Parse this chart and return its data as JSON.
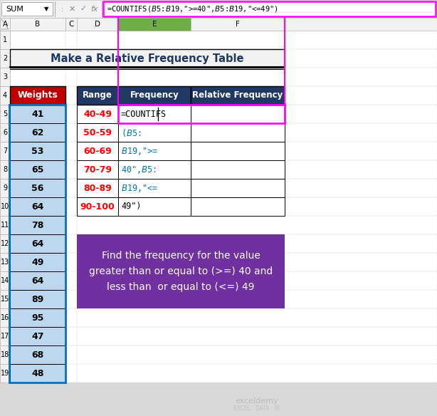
{
  "title": "Make a Relative Frequency Table",
  "weights_header": "Weights",
  "weights_data": [
    41,
    62,
    53,
    65,
    56,
    64,
    78,
    64,
    49,
    64,
    89,
    95,
    47,
    68,
    48
  ],
  "table_header": [
    "Range",
    "Frequency",
    "Relative Frequency"
  ],
  "ranges": [
    "40-49",
    "50-59",
    "60-69",
    "70-79",
    "80-89",
    "90-100"
  ],
  "formula_parts": [
    "=COUNTIFS",
    "($B$5:",
    "$B$19,\">= ",
    "40\",$B$5:",
    "$B$19,\"<= ",
    "49\")"
  ],
  "formula_parts_colors": [
    "#000000",
    "#0070C0",
    "#0070C0",
    "#0070C0",
    "#0070C0",
    "#000000"
  ],
  "formula_bar_text": "=COUNTIFS($B$5:$B$19,\">= 40\",$B$5:$B$19,\"<= 49\")",
  "annotation_text": "Find the frequency for the value\ngreater than or equal to (>=) 40 and\nless than  or equal to (<=) 49",
  "col_header_bg": "#1F3864",
  "col_header_fg": "#FFFFFF",
  "weights_header_bg": "#C00000",
  "weights_header_fg": "#FFFFFF",
  "weights_cell_bg": "#BDD7EE",
  "annotation_bg": "#7030A0",
  "annotation_fg": "#FFFFFF",
  "range_color": "#FF0000",
  "title_color": "#1F3864",
  "pink_box_color": "#FF00FF",
  "excel_bg": "#D9D9D9",
  "formula_bar_bg": "#F2F2F2",
  "cell_bg": "#FFFFFF",
  "row_num_bg": "#F2F2F2",
  "col_hdr_bg": "#F2F2F2",
  "col_e_hdr_bg": "#70AD47",
  "blue_sel_color": "#0070C0",
  "watermark_color": "#B0B0B0"
}
